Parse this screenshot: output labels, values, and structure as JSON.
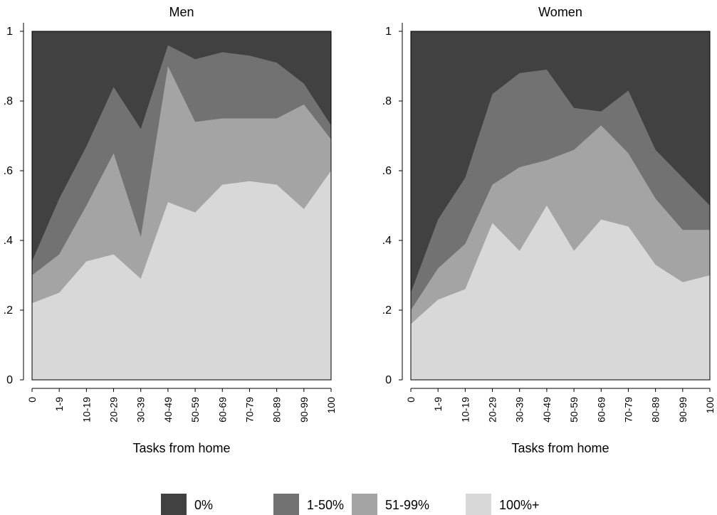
{
  "chart_data": [
    {
      "type": "area",
      "title": "Men",
      "xlabel": "Tasks from home",
      "ylabel": "",
      "ylim": [
        0,
        1
      ],
      "yticks": [
        "0",
        ".2",
        ".4",
        ".6",
        ".8",
        "1"
      ],
      "categories": [
        "0",
        "1-9",
        "10-19",
        "20-29",
        "30-39",
        "40-49",
        "50-59",
        "60-69",
        "70-79",
        "80-89",
        "90-99",
        "100"
      ],
      "stacked_cumulative": true,
      "series": [
        {
          "name": "100%+",
          "values": [
            0.22,
            0.25,
            0.34,
            0.36,
            0.29,
            0.51,
            0.48,
            0.56,
            0.57,
            0.56,
            0.49,
            0.6
          ]
        },
        {
          "name": "51-99%",
          "values": [
            0.3,
            0.36,
            0.5,
            0.65,
            0.41,
            0.9,
            0.74,
            0.75,
            0.75,
            0.75,
            0.79,
            0.69
          ]
        },
        {
          "name": "1-50%",
          "values": [
            0.34,
            0.52,
            0.67,
            0.84,
            0.72,
            0.96,
            0.92,
            0.94,
            0.93,
            0.91,
            0.85,
            0.73
          ]
        },
        {
          "name": "0%",
          "values": [
            1,
            1,
            1,
            1,
            1,
            1,
            1,
            1,
            1,
            1,
            1,
            1
          ]
        }
      ]
    },
    {
      "type": "area",
      "title": "Women",
      "xlabel": "Tasks from home",
      "ylabel": "",
      "ylim": [
        0,
        1
      ],
      "yticks": [
        "0",
        ".2",
        ".4",
        ".6",
        ".8",
        "1"
      ],
      "categories": [
        "0",
        "1-9",
        "10-19",
        "20-29",
        "30-39",
        "40-49",
        "50-59",
        "60-69",
        "70-79",
        "80-89",
        "90-99",
        "100"
      ],
      "stacked_cumulative": true,
      "series": [
        {
          "name": "100%+",
          "values": [
            0.16,
            0.23,
            0.26,
            0.45,
            0.37,
            0.5,
            0.37,
            0.46,
            0.44,
            0.33,
            0.28,
            0.3
          ]
        },
        {
          "name": "51-99%",
          "values": [
            0.2,
            0.32,
            0.39,
            0.56,
            0.61,
            0.63,
            0.66,
            0.73,
            0.65,
            0.52,
            0.43,
            0.43
          ]
        },
        {
          "name": "1-50%",
          "values": [
            0.25,
            0.46,
            0.58,
            0.82,
            0.88,
            0.89,
            0.78,
            0.77,
            0.83,
            0.66,
            0.58,
            0.5
          ]
        },
        {
          "name": "0%",
          "values": [
            1,
            1,
            1,
            1,
            1,
            1,
            1,
            1,
            1,
            1,
            1,
            1
          ]
        }
      ]
    }
  ],
  "legend": {
    "position": "bottom",
    "items": [
      {
        "label": "0%",
        "color": "#414141"
      },
      {
        "label": "1-50%",
        "color": "#727272"
      },
      {
        "label": "51-99%",
        "color": "#a4a4a4"
      },
      {
        "label": "100%+",
        "color": "#d8d8d8"
      }
    ]
  },
  "colors": {
    "0%": "#414141",
    "1-50%": "#727272",
    "51-99%": "#a4a4a4",
    "100%+": "#d8d8d8"
  }
}
